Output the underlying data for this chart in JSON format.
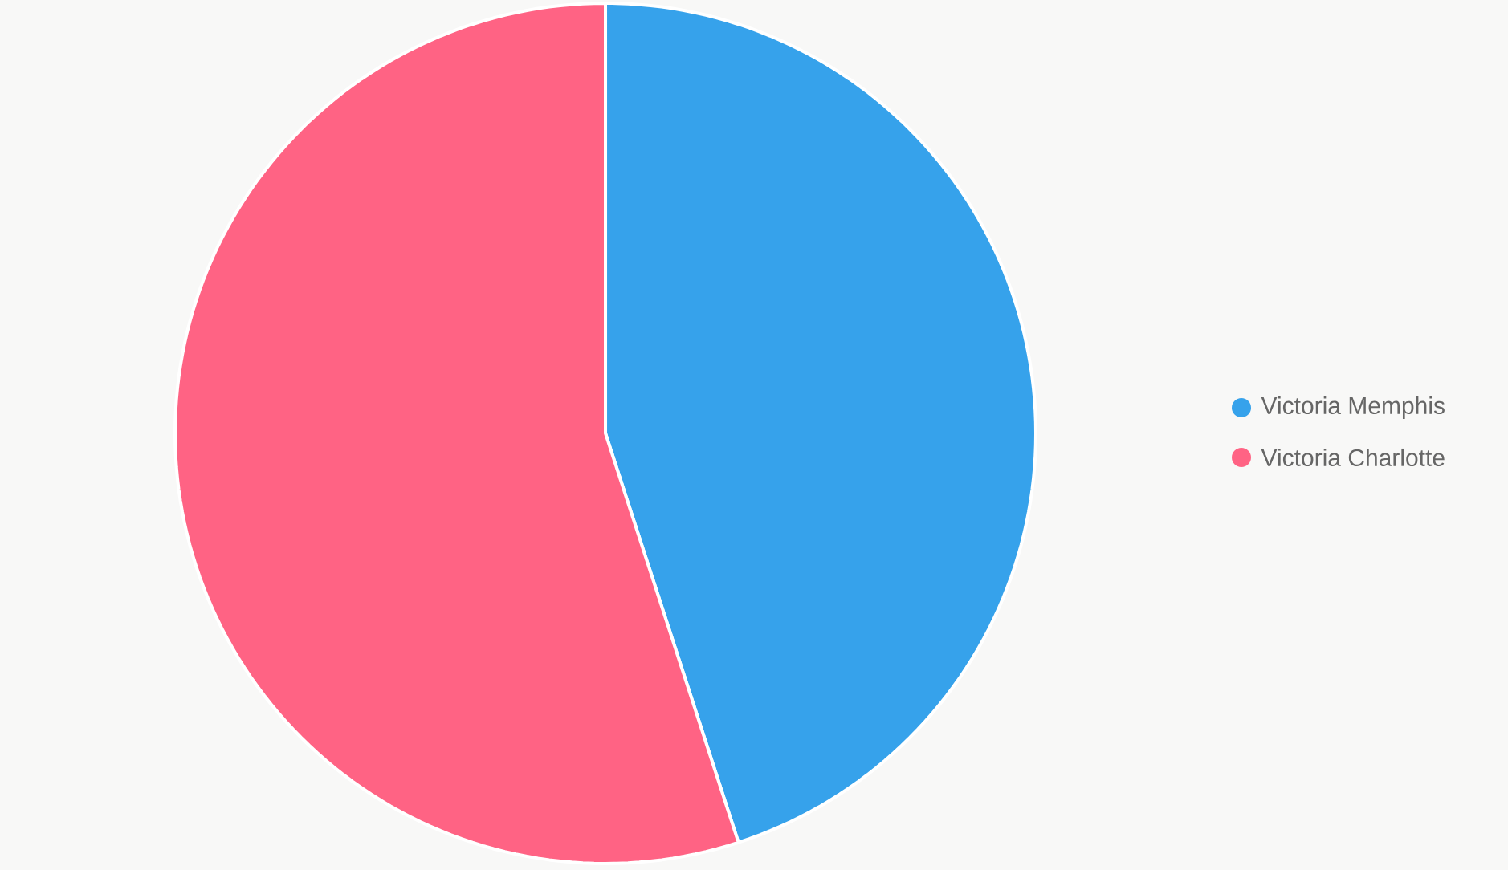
{
  "chart_data": {
    "type": "pie",
    "categories": [
      "Victoria Memphis",
      "Victoria Charlotte"
    ],
    "values": [
      45,
      55
    ],
    "colors": [
      "#36a2eb",
      "#ff6384"
    ],
    "legend": "right"
  }
}
